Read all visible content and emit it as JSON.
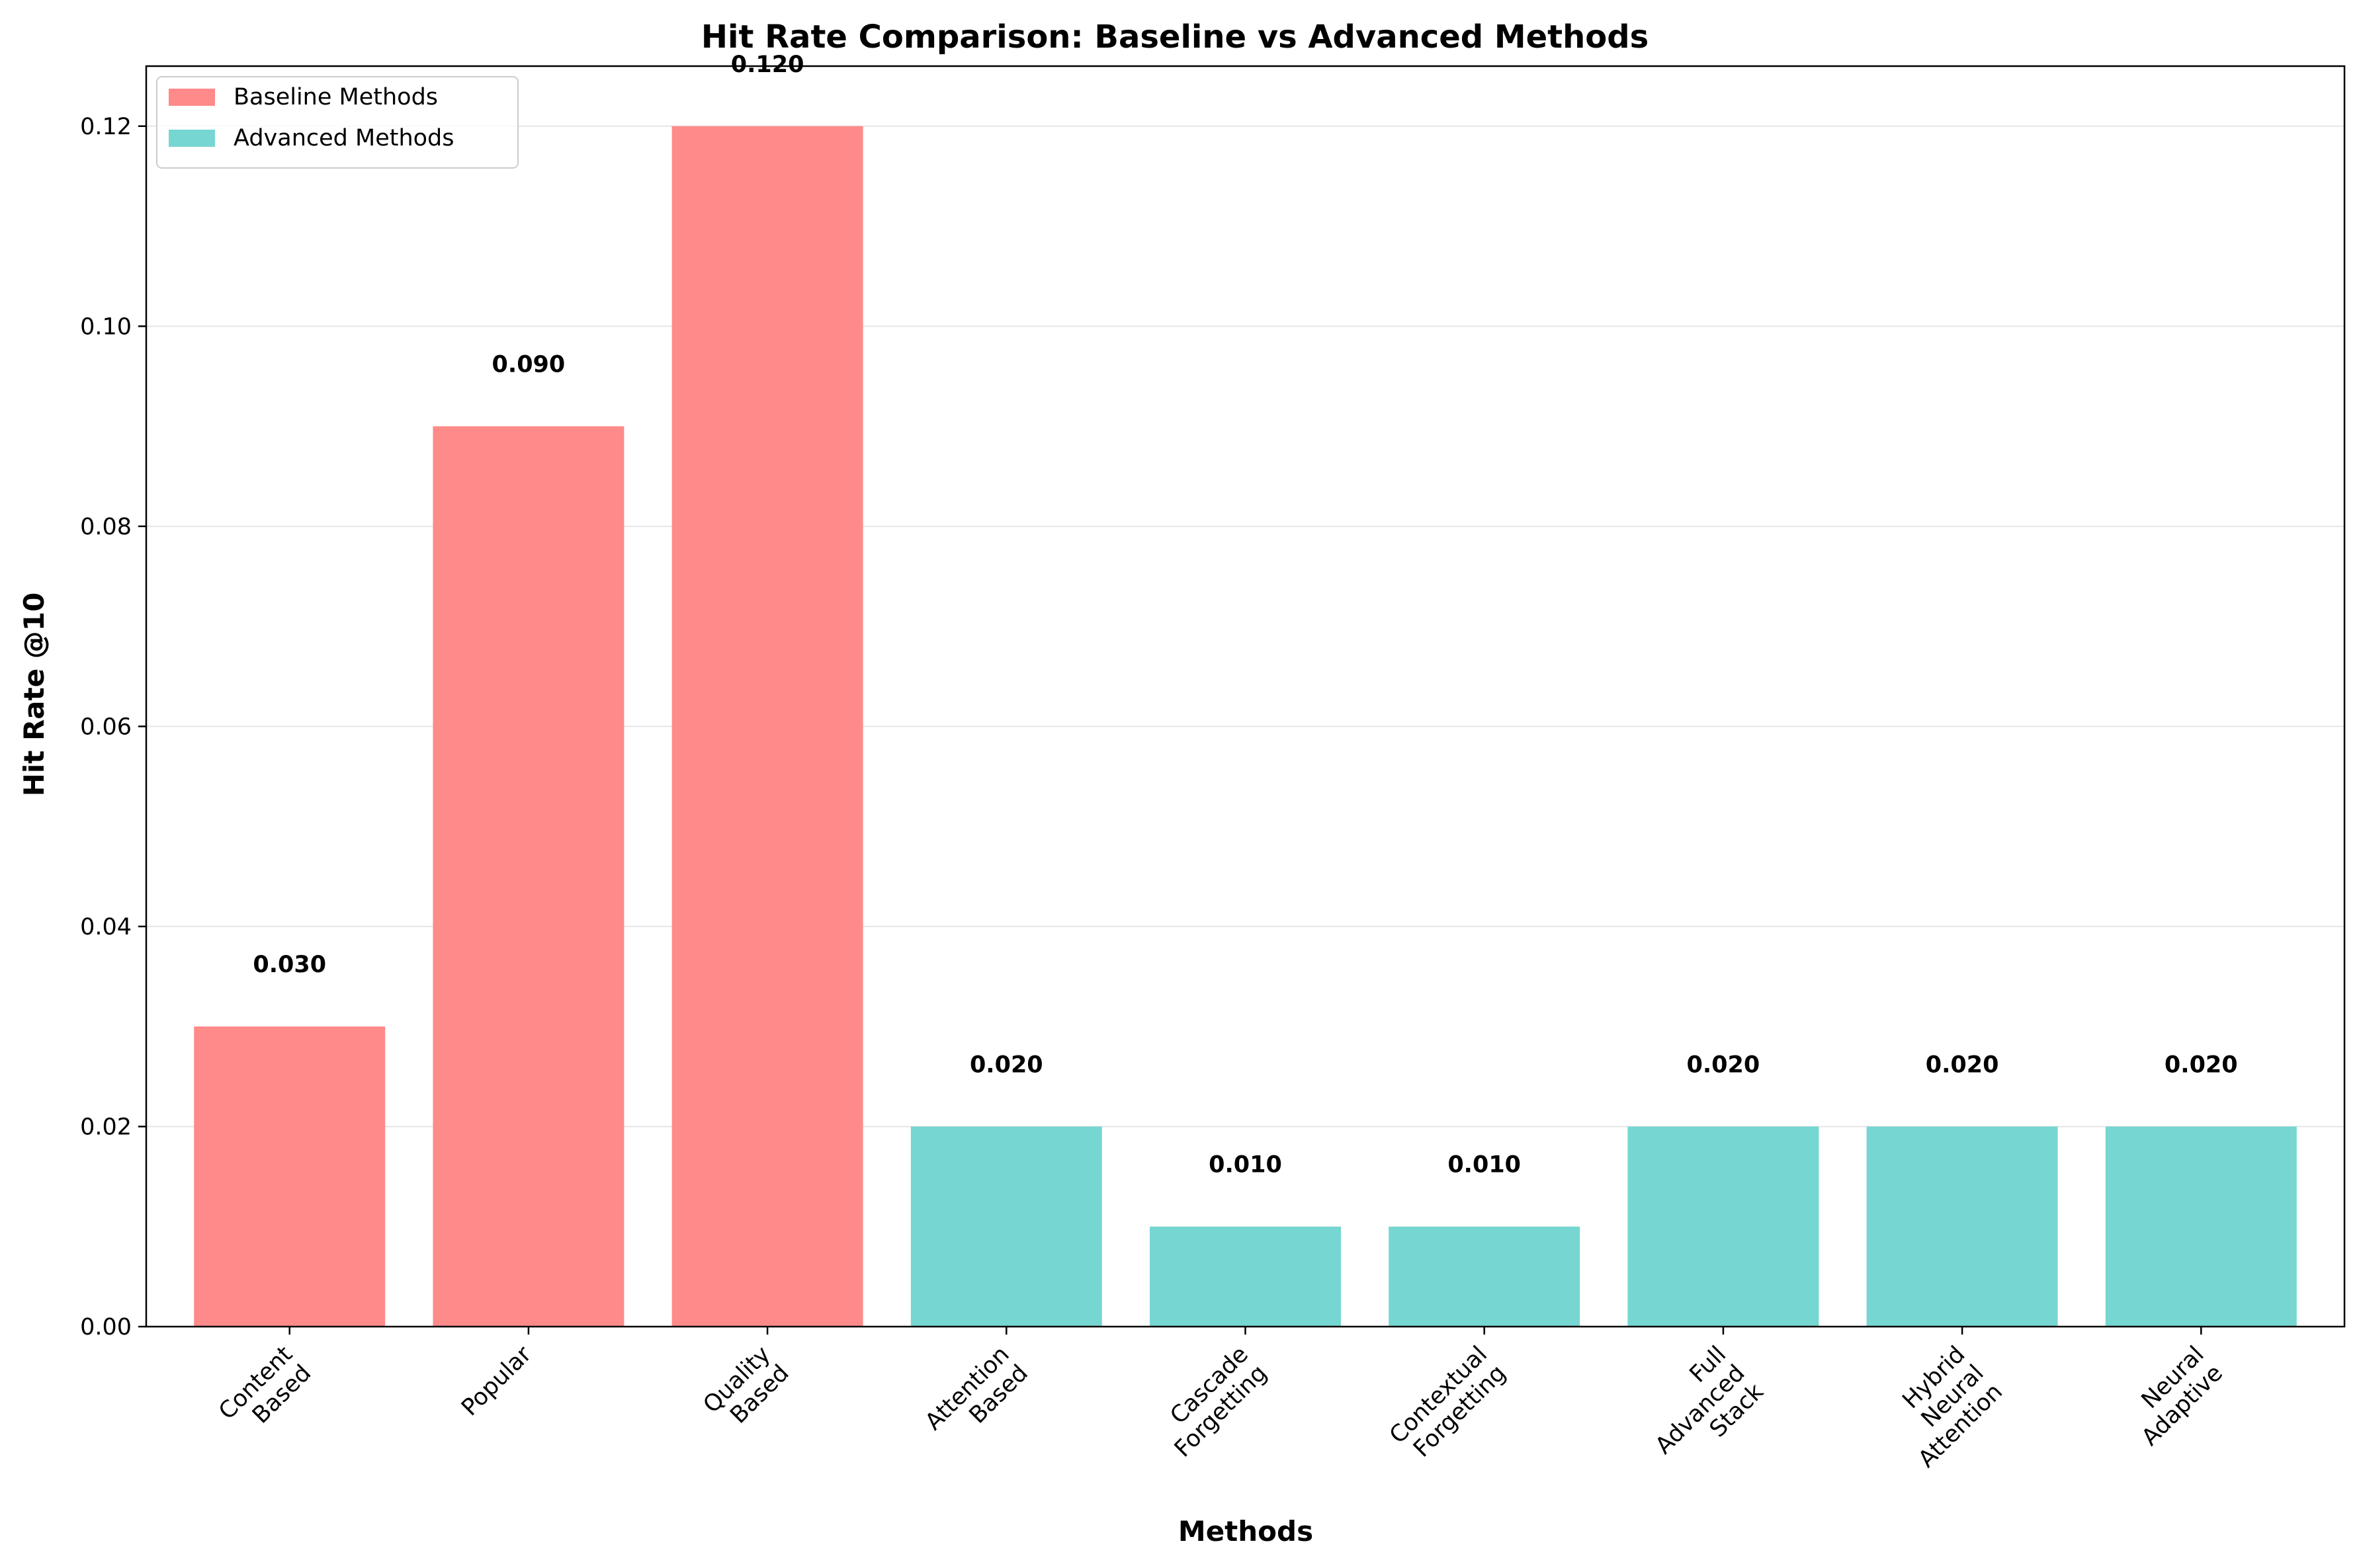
{
  "chart_data": {
    "type": "bar",
    "title": "Hit Rate Comparison: Baseline vs Advanced Methods",
    "xlabel": "Methods",
    "ylabel": "Hit Rate @10",
    "ylim": [
      0,
      0.126
    ],
    "yticks": [
      "0.00",
      "0.02",
      "0.04",
      "0.06",
      "0.08",
      "0.10",
      "0.12"
    ],
    "ytick_values": [
      0,
      0.02,
      0.04,
      0.06,
      0.08,
      0.1,
      0.12
    ],
    "grid": "horizontal",
    "legend_position": "top-left",
    "groups": [
      {
        "name": "Baseline Methods",
        "color": "#FF8A8A"
      },
      {
        "name": "Advanced Methods",
        "color": "#76D6D1"
      }
    ],
    "categories": [
      [
        "Content",
        "Based"
      ],
      [
        "Popular"
      ],
      [
        "Quality",
        "Based"
      ],
      [
        "Attention",
        "Based"
      ],
      [
        "Cascade",
        "Forgetting"
      ],
      [
        "Contextual",
        "Forgetting"
      ],
      [
        "Full",
        "Advanced",
        "Stack"
      ],
      [
        "Hybrid",
        "Neural",
        "Attention"
      ],
      [
        "Neural",
        "Adaptive"
      ]
    ],
    "values": [
      0.03,
      0.09,
      0.12,
      0.02,
      0.01,
      0.01,
      0.02,
      0.02,
      0.02
    ],
    "value_labels": [
      "0.030",
      "0.090",
      "0.120",
      "0.020",
      "0.010",
      "0.010",
      "0.020",
      "0.020",
      "0.020"
    ],
    "group_index": [
      0,
      0,
      0,
      1,
      1,
      1,
      1,
      1,
      1
    ]
  }
}
